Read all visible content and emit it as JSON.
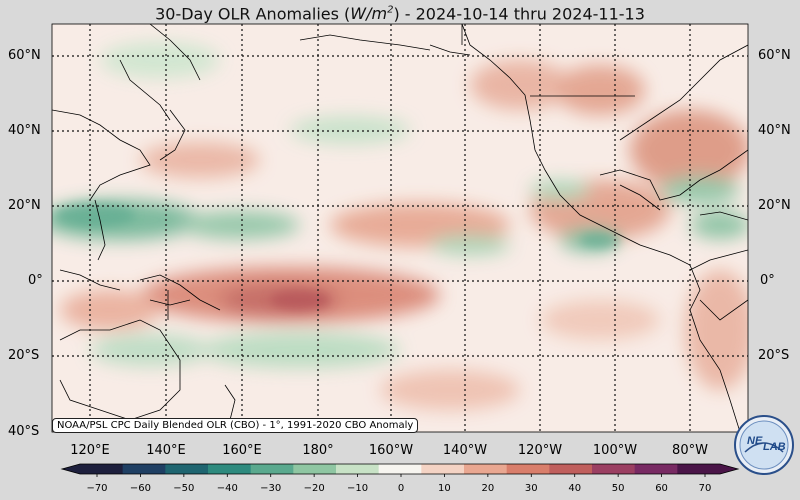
{
  "title": {
    "prefix": "30-Day OLR Anomalies (",
    "unit": "W/m",
    "unit_sup": "2",
    "suffix": ") - 2024-10-14 thru 2024-11-13"
  },
  "lat_labels": [
    "60°N",
    "40°N",
    "20°N",
    "0°",
    "20°S",
    "40°S"
  ],
  "lon_labels": [
    "120°E",
    "140°E",
    "160°E",
    "180°",
    "160°W",
    "140°W",
    "120°W",
    "100°W",
    "80°W"
  ],
  "source_note": "NOAA/PSL CPC Daily Blended OLR (CBO) - 1°, 1991-2020 CBO Anomaly",
  "colorbar": {
    "ticks": [
      "−70",
      "−60",
      "−50",
      "−40",
      "−30",
      "−20",
      "−10",
      "0",
      "10",
      "20",
      "30",
      "40",
      "50",
      "60",
      "70"
    ],
    "colors": [
      "#1d1f3d",
      "#1f3f63",
      "#1f6570",
      "#2e8a7e",
      "#5aa98e",
      "#8fc6a2",
      "#c8e2c6",
      "#f7f5f0",
      "#f4d3c4",
      "#e9a791",
      "#d97e6b",
      "#c05f5d",
      "#9b3f62",
      "#782a63",
      "#4a1548"
    ]
  },
  "logo": {
    "text_a": "NE",
    "text_b": "LAB"
  }
}
